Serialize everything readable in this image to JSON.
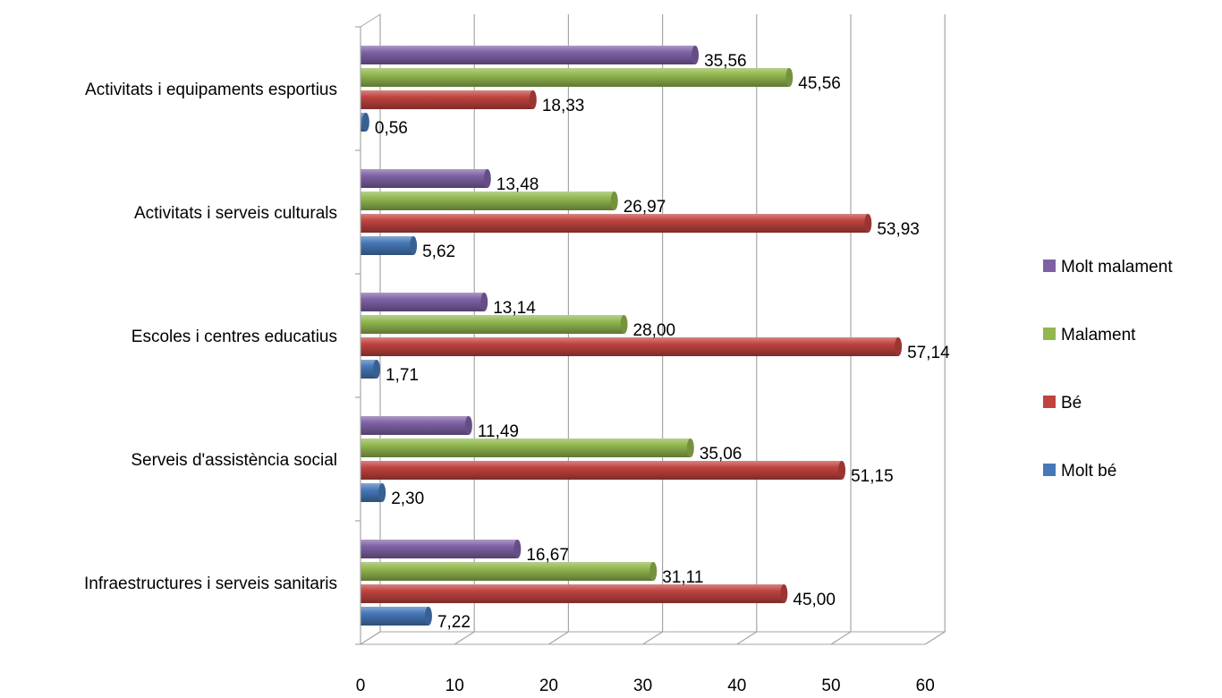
{
  "chart_data": {
    "type": "bar",
    "orientation": "horizontal",
    "categories": [
      "Activitats i equipaments esportius",
      "Activitats i serveis culturals",
      "Escoles i centres  educatius",
      "Serveis d'assistència social",
      "Infraestructures  i serveis sanitaris"
    ],
    "series": [
      {
        "name": "Molt malament",
        "color": "#7f62a6",
        "values": [
          35.56,
          13.48,
          13.14,
          11.49,
          16.67
        ],
        "labels": [
          "35,56",
          "13,48",
          "13,14",
          "11,49",
          "16,67"
        ]
      },
      {
        "name": "Malament",
        "color": "#92b74f",
        "values": [
          45.56,
          26.97,
          28.0,
          35.06,
          31.11
        ],
        "labels": [
          "45,56",
          "26,97",
          "28,00",
          "35,06",
          "31,11"
        ]
      },
      {
        "name": "Bé",
        "color": "#c0433f",
        "values": [
          18.33,
          53.93,
          57.14,
          51.15,
          45.0
        ],
        "labels": [
          "18,33",
          "53,93",
          "57,14",
          "51,15",
          "45,00"
        ]
      },
      {
        "name": "Molt bé",
        "color": "#4678b8",
        "values": [
          0.56,
          5.62,
          1.71,
          2.3,
          7.22
        ],
        "labels": [
          "0,56",
          "5,62",
          "1,71",
          "2,30",
          "7,22"
        ]
      }
    ],
    "xlim": [
      0,
      60
    ],
    "xticks": [
      "0",
      "10",
      "20",
      "30",
      "40",
      "50",
      "60"
    ],
    "grid": true,
    "legend_position": "right",
    "legend_order": [
      "Molt malament",
      "Malament",
      "Bé",
      "Molt bé"
    ],
    "style": "3d-cylinder"
  }
}
